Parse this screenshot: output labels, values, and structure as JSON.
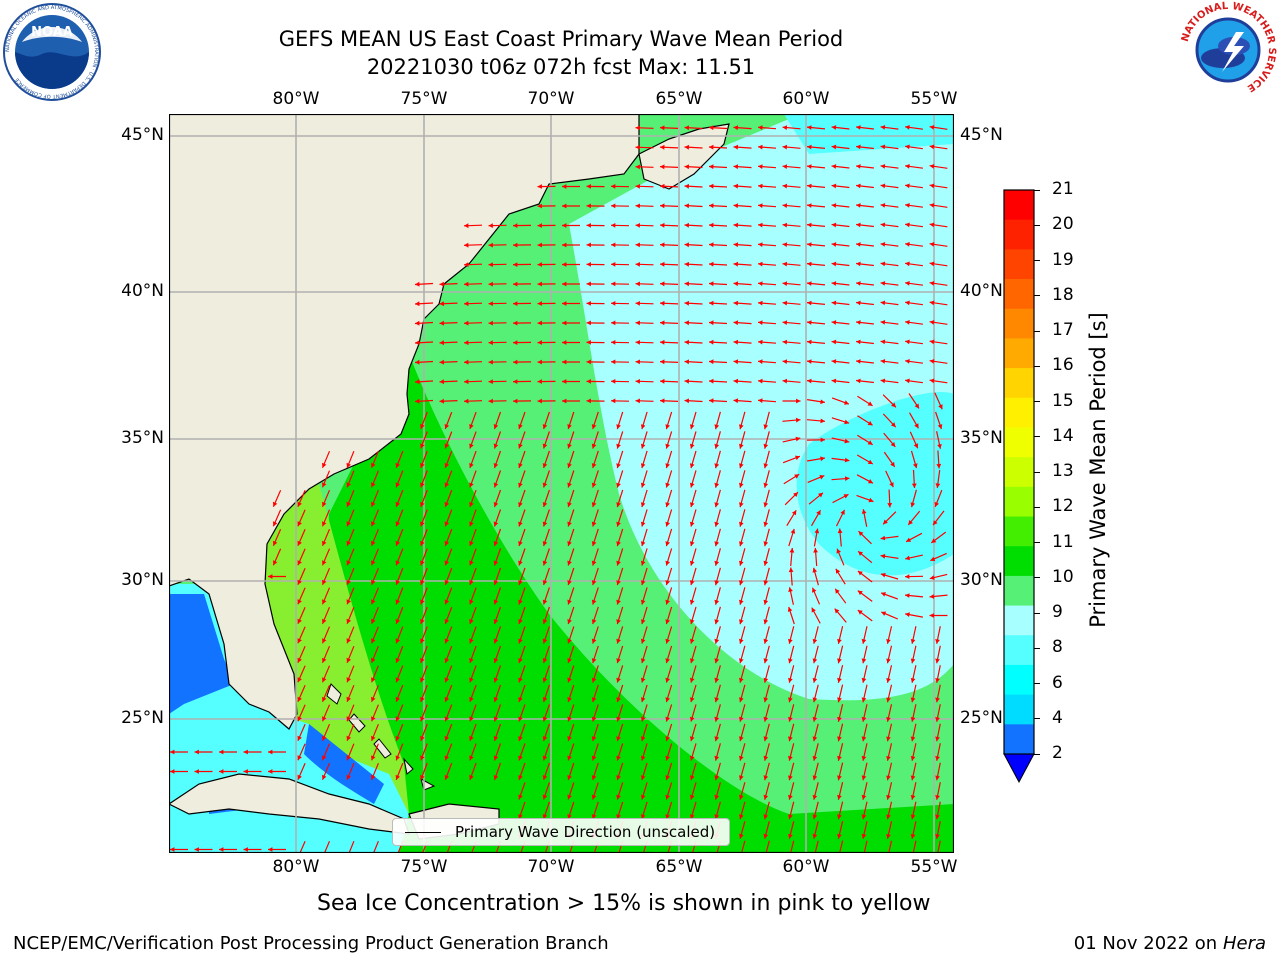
{
  "title_line1": "GEFS MEAN US East Coast Primary Wave Mean Period",
  "title_line2": "20221030 t06z 072h fcst   Max: 11.51",
  "logos": {
    "left": {
      "icon": "noaa-logo-icon",
      "text": "NOAA",
      "ring_text": "NATIONAL OCEANIC AND ATMOSPHERIC ADMINISTRATION · U.S. DEPARTMENT OF COMMERCE"
    },
    "right": {
      "icon": "nws-logo-icon",
      "ring_text": "NATIONAL WEATHER SERVICE"
    }
  },
  "lon_labels": [
    "80°W",
    "75°W",
    "70°W",
    "65°W",
    "60°W",
    "55°W"
  ],
  "lat_labels": [
    "45°N",
    "40°N",
    "35°N",
    "30°N",
    "25°N"
  ],
  "colorbar": {
    "label": "Primary Wave Mean Period [s]",
    "ticks": [
      "21",
      "20",
      "19",
      "18",
      "17",
      "16",
      "15",
      "14",
      "13",
      "12",
      "11",
      "10",
      "9",
      "8",
      "6",
      "4",
      "2"
    ],
    "colors": [
      "#ff0000",
      "#ff2200",
      "#ff4400",
      "#ff6600",
      "#ff8800",
      "#ffaa00",
      "#ffd400",
      "#fff000",
      "#f0ff00",
      "#ccff00",
      "#99ff00",
      "#44ee00",
      "#00dd00",
      "#55f075",
      "#a8ffff",
      "#55ffff",
      "#00ffff",
      "#00dcff",
      "#1173ff"
    ],
    "underflow_color": "#0000ff"
  },
  "legend": {
    "label": "Primary Wave Direction (unscaled)"
  },
  "note": "Sea Ice Concentration > 15% is shown in pink to yellow",
  "footer_left": "NCEP/EMC/Verification Post Processing Product Generation Branch",
  "footer_right_date": "01 Nov 2022 on",
  "footer_right_machine": "Hera",
  "colors": {
    "land": "#efedde",
    "ocean_period_8": "#a8ffff",
    "ocean_period_9": "#55f075",
    "ocean_period_10": "#00dd00",
    "ocean_period_11": "#44ee00",
    "gulf_6": "#55ffff",
    "gulf_4": "#00ffff",
    "gulf_2": "#1173ff",
    "arrows": "#ff0000",
    "grid": "#b0b0b0"
  }
}
